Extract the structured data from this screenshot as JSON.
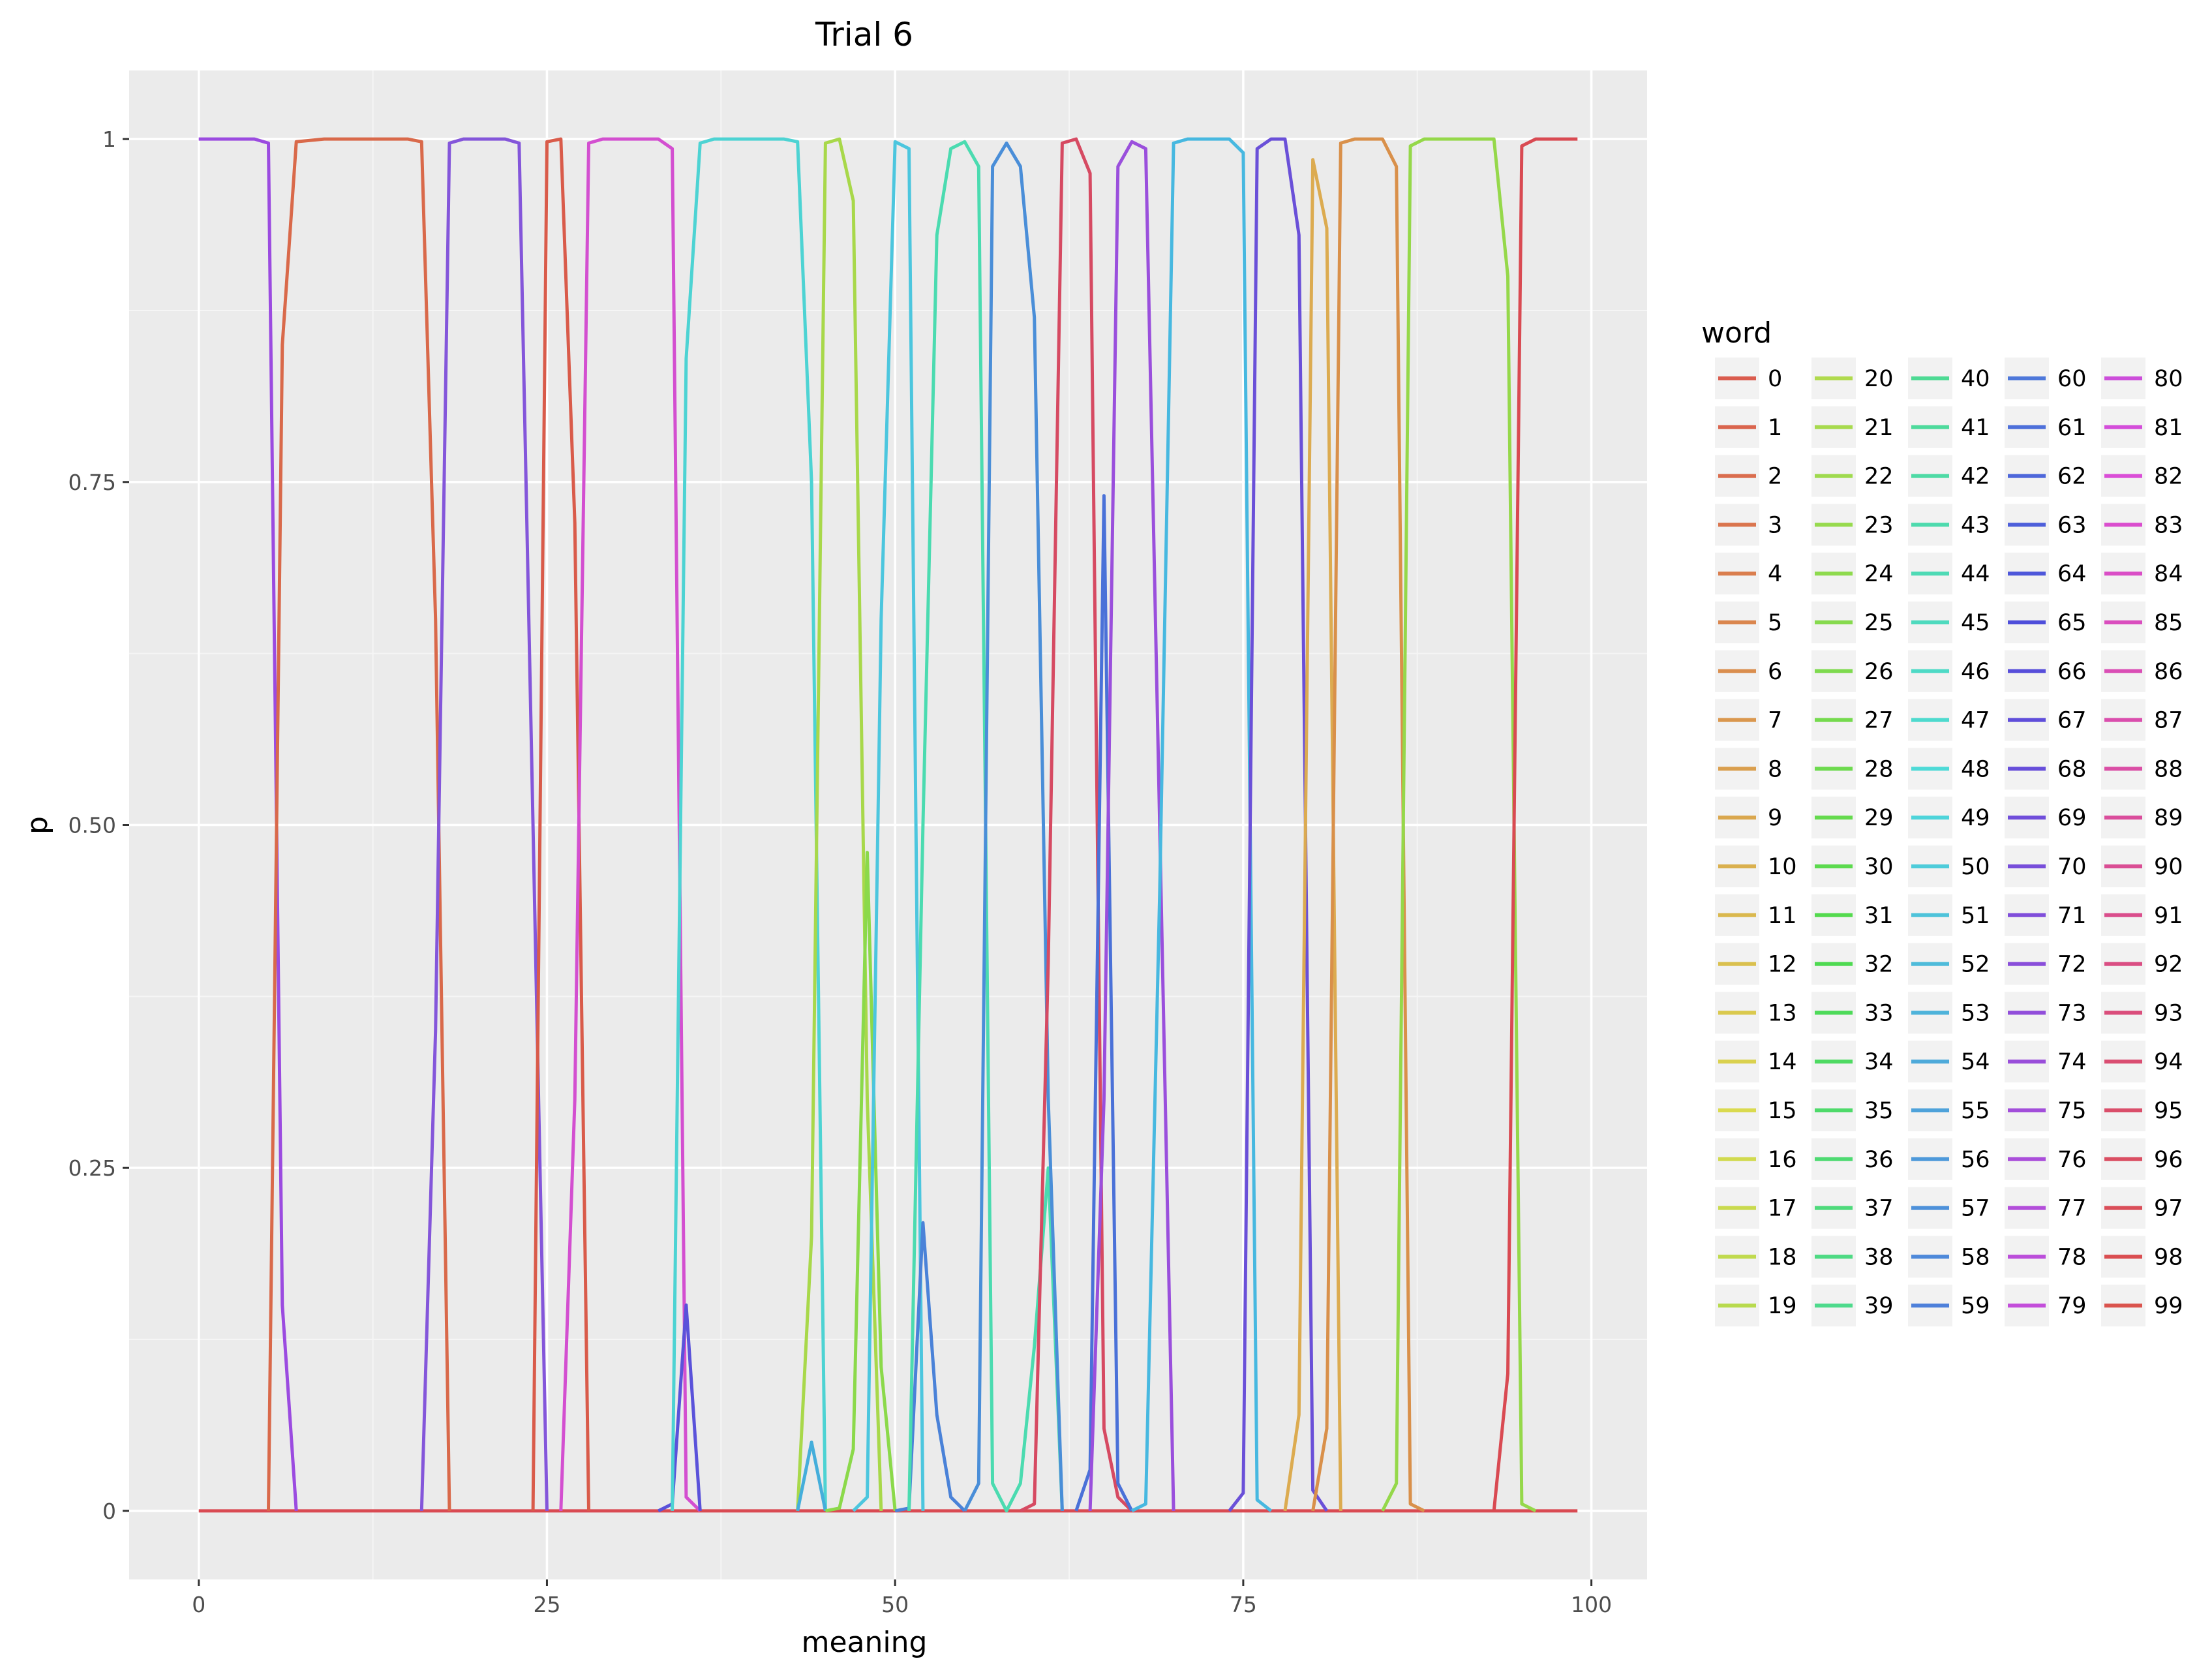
{
  "chart_data": {
    "type": "line",
    "title": "Trial 6",
    "xlabel": "meaning",
    "ylabel": "p",
    "x_ticks": [
      0,
      25,
      50,
      75,
      100
    ],
    "y_ticks": [
      0,
      0.25,
      0.5,
      0.75,
      1
    ],
    "y_tick_labels": [
      "0",
      "0.25",
      "0.50",
      "0.75",
      "1"
    ],
    "xlim": [
      -5,
      104
    ],
    "ylim": [
      -0.05,
      1.05
    ],
    "grid": true,
    "legend": {
      "title": "word",
      "placement": "right",
      "columns": 5,
      "labels": [
        "0",
        "1",
        "2",
        "3",
        "4",
        "5",
        "6",
        "7",
        "8",
        "9",
        "10",
        "11",
        "12",
        "13",
        "14",
        "15",
        "16",
        "17",
        "18",
        "19",
        "20",
        "21",
        "22",
        "23",
        "24",
        "25",
        "26",
        "27",
        "28",
        "29",
        "30",
        "31",
        "32",
        "33",
        "34",
        "35",
        "36",
        "37",
        "38",
        "39",
        "40",
        "41",
        "42",
        "43",
        "44",
        "45",
        "46",
        "47",
        "48",
        "49",
        "50",
        "51",
        "52",
        "53",
        "54",
        "55",
        "56",
        "57",
        "58",
        "59",
        "60",
        "61",
        "62",
        "63",
        "64",
        "65",
        "66",
        "67",
        "68",
        "69",
        "70",
        "71",
        "72",
        "73",
        "74",
        "75",
        "76",
        "77",
        "78",
        "79",
        "80",
        "81",
        "82",
        "83",
        "84",
        "85",
        "86",
        "87",
        "88",
        "89",
        "90",
        "91",
        "92",
        "93",
        "94",
        "95",
        "96",
        "97",
        "98",
        "99"
      ]
    },
    "x_range": [
      0,
      99
    ],
    "baseline": 0,
    "series": [
      {
        "name": "75",
        "color": "#9b4be0",
        "points": [
          [
            0,
            1
          ],
          [
            4,
            1
          ],
          [
            5,
            0.997
          ],
          [
            6,
            0.15
          ],
          [
            7,
            0
          ]
        ]
      },
      {
        "name": "3",
        "color": "#d9694a",
        "points": [
          [
            5,
            0
          ],
          [
            6,
            0.85
          ],
          [
            7,
            0.998
          ],
          [
            9,
            1
          ],
          [
            15,
            1
          ],
          [
            16,
            0.998
          ],
          [
            17,
            0.65
          ],
          [
            18,
            0
          ]
        ]
      },
      {
        "name": "70",
        "color": "#8456da",
        "points": [
          [
            16,
            0
          ],
          [
            17,
            0.35
          ],
          [
            18,
            0.997
          ],
          [
            19,
            1
          ],
          [
            22,
            1
          ],
          [
            23,
            0.997
          ],
          [
            24,
            0.5
          ],
          [
            25,
            0
          ]
        ]
      },
      {
        "name": "1",
        "color": "#d95b4a",
        "points": [
          [
            24,
            0
          ],
          [
            25,
            0.998
          ],
          [
            26,
            1
          ],
          [
            27,
            0.72
          ],
          [
            28,
            0
          ]
        ]
      },
      {
        "name": "84",
        "color": "#d34fd0",
        "points": [
          [
            26,
            0
          ],
          [
            27,
            0.3
          ],
          [
            28,
            0.997
          ],
          [
            29,
            1
          ],
          [
            33,
            1
          ],
          [
            34,
            0.993
          ],
          [
            35,
            0.01
          ],
          [
            36,
            0
          ]
        ]
      },
      {
        "name": "66",
        "color": "#5a52da",
        "points": [
          [
            33,
            0
          ],
          [
            34,
            0.005
          ],
          [
            35,
            0.15
          ],
          [
            36,
            0
          ]
        ]
      },
      {
        "name": "49",
        "color": "#4dd3d3",
        "points": [
          [
            34,
            0
          ],
          [
            35,
            0.84
          ],
          [
            36,
            0.997
          ],
          [
            37,
            1
          ],
          [
            42,
            1
          ],
          [
            43,
            0.998
          ],
          [
            44,
            0.75
          ],
          [
            45,
            0
          ]
        ]
      },
      {
        "name": "21",
        "color": "#a8d84a",
        "points": [
          [
            43,
            0
          ],
          [
            44,
            0.2
          ],
          [
            45,
            0.997
          ],
          [
            46,
            1
          ],
          [
            47,
            0.955
          ],
          [
            48,
            0.3
          ],
          [
            49,
            0
          ]
        ]
      },
      {
        "name": "54",
        "color": "#45aedb",
        "points": [
          [
            43,
            0
          ],
          [
            44,
            0.05
          ],
          [
            45,
            0
          ]
        ]
      },
      {
        "name": "27",
        "color": "#8bd94a",
        "points": [
          [
            45,
            0
          ],
          [
            46,
            0.002
          ],
          [
            47,
            0.045
          ],
          [
            48,
            0.48
          ],
          [
            49,
            0.105
          ],
          [
            50,
            0
          ]
        ]
      },
      {
        "name": "51",
        "color": "#4cc6de",
        "points": [
          [
            47,
            0
          ],
          [
            48,
            0.01
          ],
          [
            49,
            0.65
          ],
          [
            50,
            0.998
          ],
          [
            51,
            0.993
          ],
          [
            52,
            0
          ]
        ]
      },
      {
        "name": "60",
        "color": "#4a82d8",
        "points": [
          [
            50,
            0
          ],
          [
            51,
            0.002
          ],
          [
            52,
            0.21
          ],
          [
            53,
            0.07
          ],
          [
            54,
            0.01
          ],
          [
            55,
            0
          ]
        ]
      },
      {
        "name": "44",
        "color": "#4bdbb0",
        "points": [
          [
            51,
            0
          ],
          [
            52,
            0.5
          ],
          [
            53,
            0.93
          ],
          [
            54,
            0.993
          ],
          [
            55,
            0.998
          ],
          [
            56,
            0.98
          ],
          [
            57,
            0.02
          ],
          [
            58,
            0
          ],
          [
            59,
            0.02
          ],
          [
            60,
            0.12
          ],
          [
            61,
            0.25
          ],
          [
            62,
            0
          ]
        ]
      },
      {
        "name": "59",
        "color": "#4a8ed8",
        "points": [
          [
            55,
            0
          ],
          [
            56,
            0.02
          ],
          [
            57,
            0.98
          ],
          [
            58,
            0.997
          ],
          [
            59,
            0.98
          ],
          [
            60,
            0.87
          ],
          [
            61,
            0.3
          ],
          [
            62,
            0
          ]
        ]
      },
      {
        "name": "96",
        "color": "#d64a62",
        "points": [
          [
            59,
            0
          ],
          [
            60,
            0.005
          ],
          [
            61,
            0.4
          ],
          [
            62,
            0.997
          ],
          [
            63,
            1
          ],
          [
            64,
            0.975
          ],
          [
            65,
            0.06
          ],
          [
            66,
            0.01
          ],
          [
            67,
            0
          ]
        ]
      },
      {
        "name": "62",
        "color": "#4a71d8",
        "points": [
          [
            63,
            0
          ],
          [
            64,
            0.03
          ],
          [
            65,
            0.74
          ],
          [
            66,
            0.02
          ],
          [
            67,
            0
          ]
        ]
      },
      {
        "name": "73",
        "color": "#9a4fdc",
        "points": [
          [
            64,
            0
          ],
          [
            65,
            0.3
          ],
          [
            66,
            0.98
          ],
          [
            67,
            0.998
          ],
          [
            68,
            0.993
          ],
          [
            69,
            0.5
          ],
          [
            70,
            0
          ]
        ]
      },
      {
        "name": "52",
        "color": "#47b8e0",
        "points": [
          [
            67,
            0
          ],
          [
            68,
            0.005
          ],
          [
            69,
            0.45
          ],
          [
            70,
            0.997
          ],
          [
            71,
            1
          ],
          [
            74,
            1
          ],
          [
            75,
            0.99
          ],
          [
            76,
            0.008
          ],
          [
            77,
            0
          ]
        ]
      },
      {
        "name": "67",
        "color": "#6a50d8",
        "points": [
          [
            74,
            0
          ],
          [
            75,
            0.013
          ],
          [
            76,
            0.993
          ],
          [
            77,
            1
          ],
          [
            78,
            1
          ],
          [
            79,
            0.93
          ],
          [
            80,
            0.015
          ],
          [
            81,
            0
          ]
        ]
      },
      {
        "name": "10",
        "color": "#dcab50",
        "points": [
          [
            78,
            0
          ],
          [
            79,
            0.07
          ],
          [
            80,
            0.985
          ],
          [
            81,
            0.935
          ],
          [
            82,
            0
          ]
        ]
      },
      {
        "name": "7",
        "color": "#d9904a",
        "points": [
          [
            80,
            0
          ],
          [
            81,
            0.06
          ],
          [
            82,
            0.997
          ],
          [
            83,
            1
          ],
          [
            85,
            1
          ],
          [
            86,
            0.98
          ],
          [
            87,
            0.005
          ],
          [
            88,
            0
          ]
        ]
      },
      {
        "name": "25",
        "color": "#95d84a",
        "points": [
          [
            85,
            0
          ],
          [
            86,
            0.02
          ],
          [
            87,
            0.995
          ],
          [
            88,
            1
          ],
          [
            93,
            1
          ],
          [
            94,
            0.9
          ],
          [
            95,
            0.005
          ],
          [
            96,
            0
          ]
        ]
      },
      {
        "name": "97",
        "color": "#d94a52",
        "points": [
          [
            93,
            0
          ],
          [
            94,
            0.1
          ],
          [
            95,
            0.995
          ],
          [
            96,
            1
          ],
          [
            99,
            1
          ]
        ]
      }
    ]
  }
}
